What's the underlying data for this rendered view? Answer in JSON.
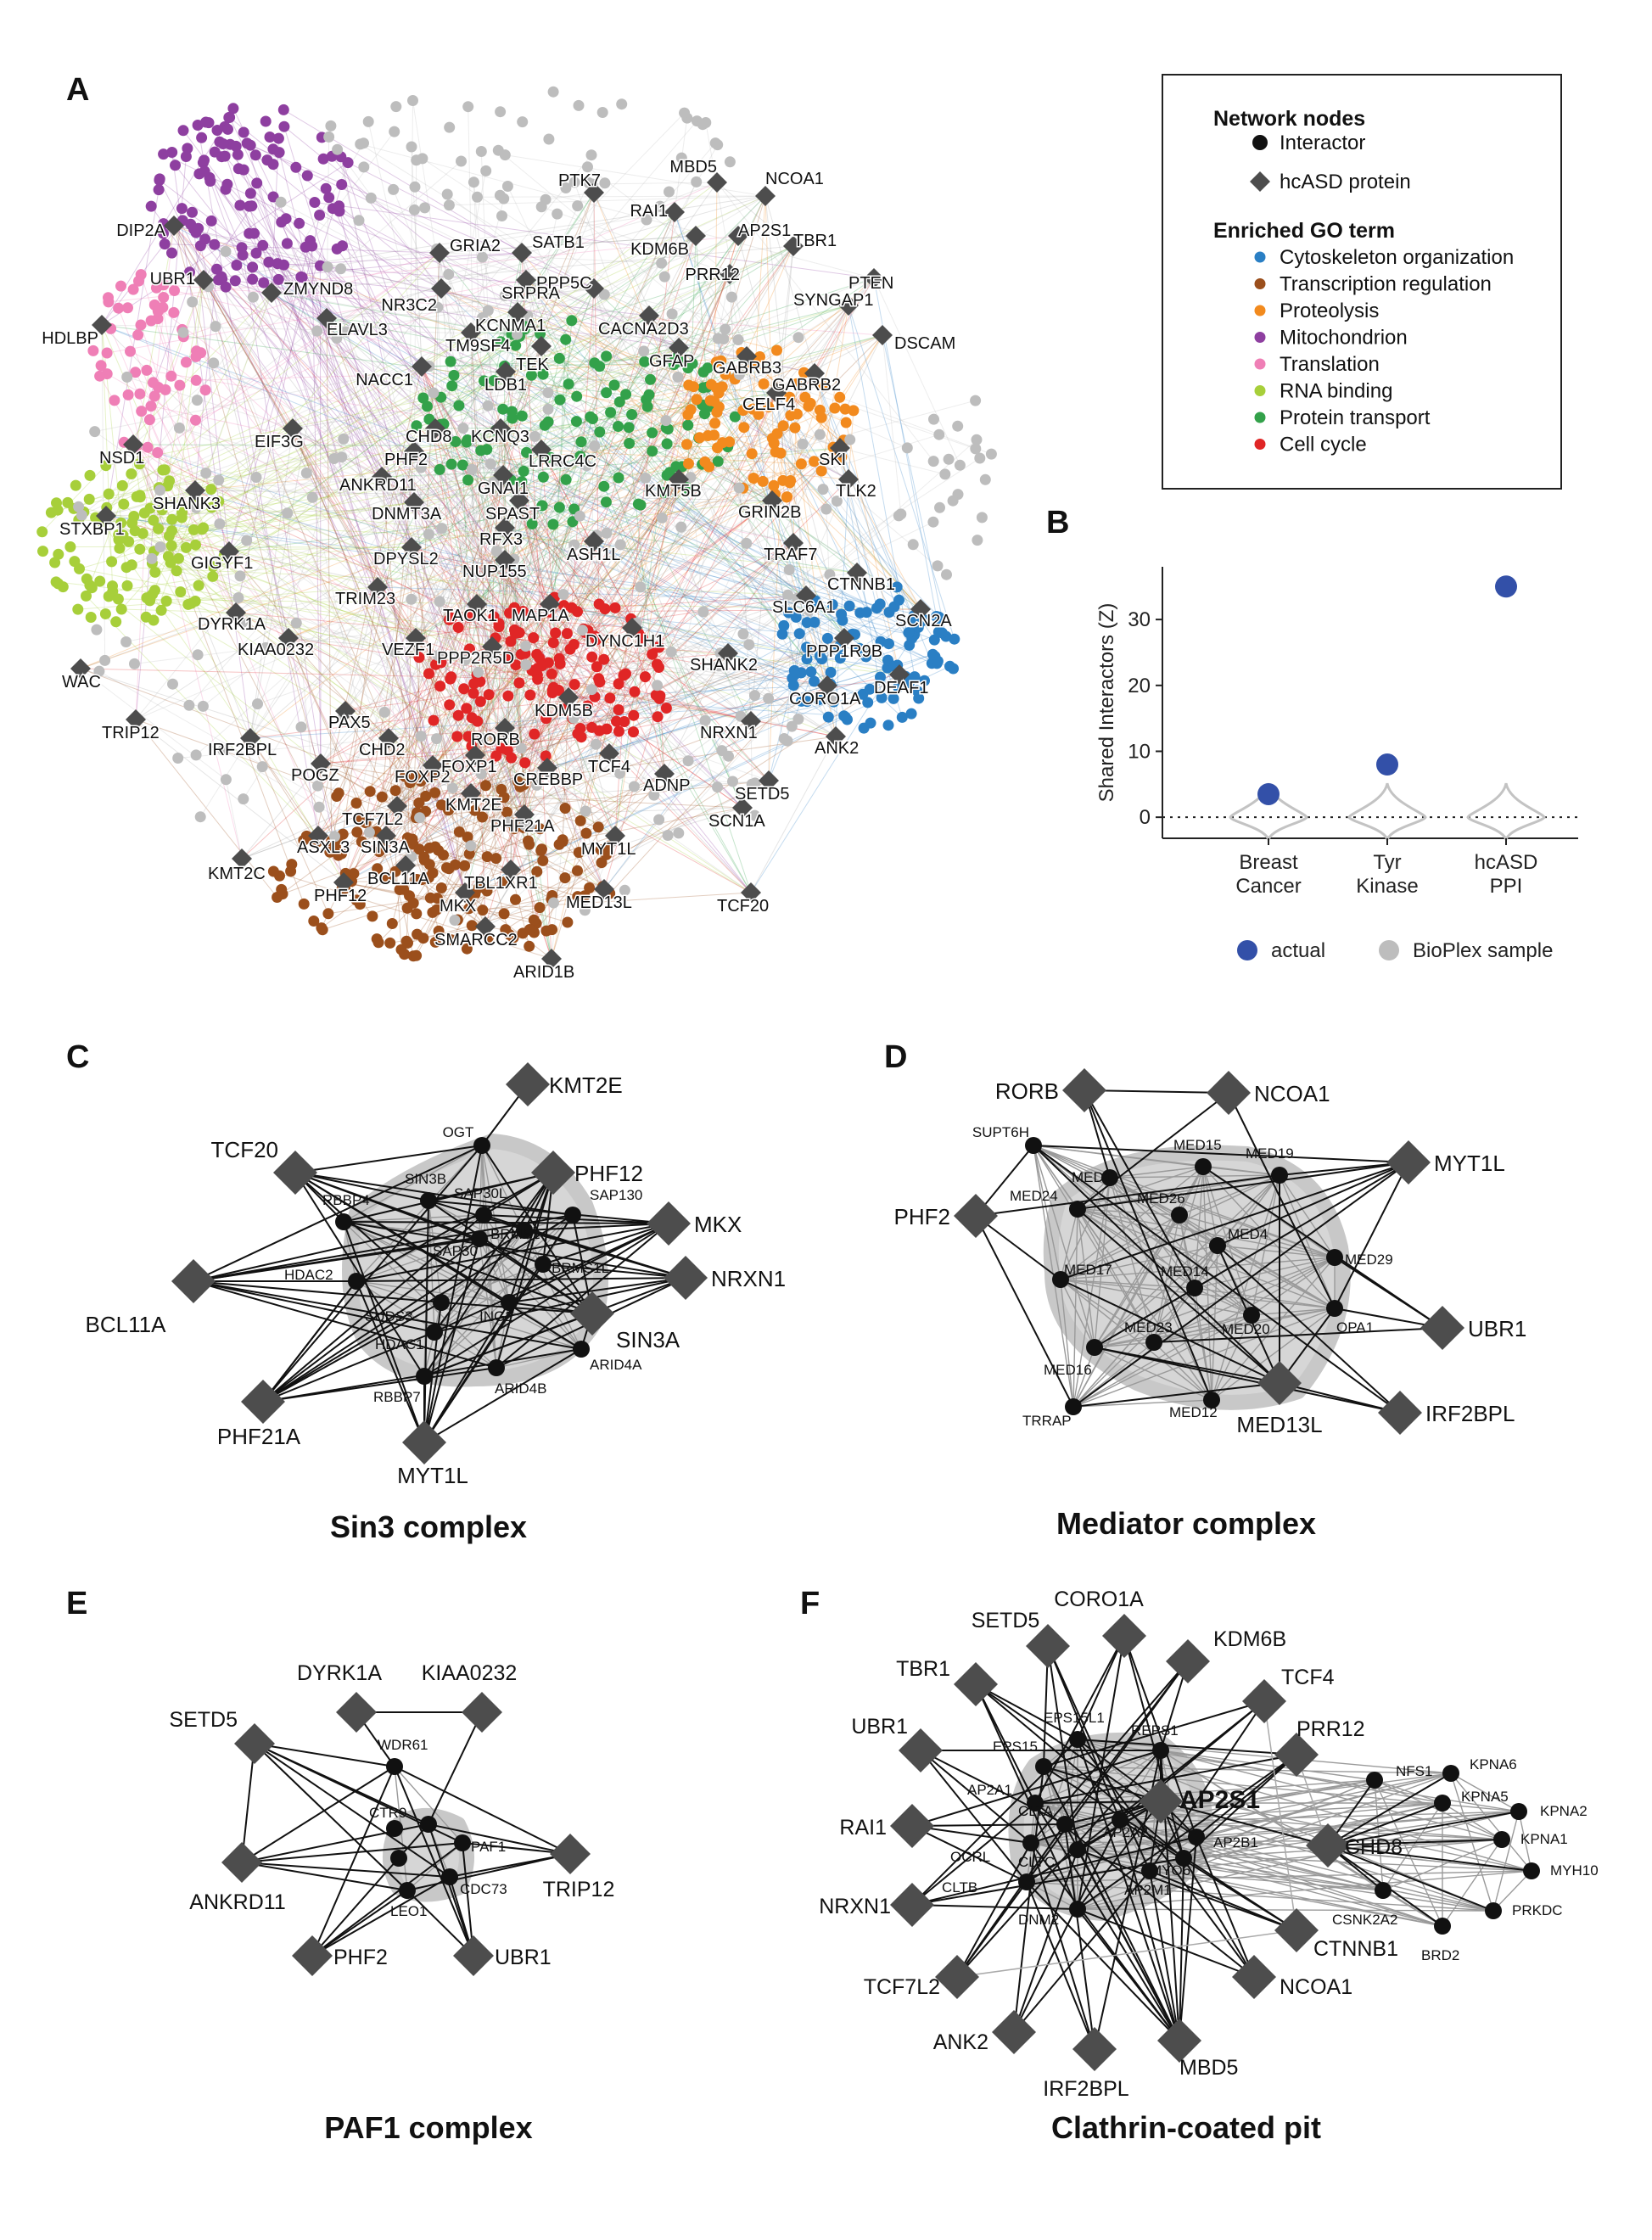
{
  "panels": {
    "A": {
      "label": "A",
      "legend": {
        "nodes_title": "Network nodes",
        "nodes": [
          {
            "label": "Interactor",
            "shape": "circle",
            "color": "#111111"
          },
          {
            "label": "hcASD protein",
            "shape": "diamond",
            "color": "#4d4d4d"
          }
        ],
        "go_title": "Enriched GO term",
        "go": [
          {
            "label": "Cytoskeleton organization",
            "color": "#2a7fc4"
          },
          {
            "label": "Transcription regulation",
            "color": "#9b4f1c"
          },
          {
            "label": "Proteolysis",
            "color": "#f28a1e"
          },
          {
            "label": "Mitochondrion",
            "color": "#8e3fa0"
          },
          {
            "label": "Translation",
            "color": "#ef7fb6"
          },
          {
            "label": "RNA binding",
            "color": "#a7cf3a"
          },
          {
            "label": "Protein transport",
            "color": "#33a14a"
          },
          {
            "label": "Cell cycle",
            "color": "#e02626"
          }
        ]
      },
      "proteins": [
        "PTK7",
        "MBD5",
        "NCOA1",
        "DIP2A",
        "RAI1",
        "KDM6B",
        "AP2S1",
        "TBR1",
        "PTEN",
        "GRIA2",
        "SATB1",
        "PRR12",
        "UBR1",
        "ZMYND8",
        "NR3C2",
        "PPP5C",
        "SRPRA",
        "SYNGAP1",
        "DSCAM",
        "HDLBP",
        "ELAVL3",
        "KCNMA1",
        "CACNA2D3",
        "TM9SF4",
        "TEK",
        "GFAP",
        "GABRB3",
        "GABRB2",
        "NACC1",
        "LDB1",
        "CELF4",
        "EIF3G",
        "NSD1",
        "CHD8",
        "KCNQ3",
        "PHF2",
        "LRRC4C",
        "SKI",
        "ANKRD11",
        "GNAI1",
        "TLK2",
        "SHANK3",
        "DNMT3A",
        "KMT5B",
        "SPAST",
        "STXBP1",
        "RFX3",
        "GRIN2B",
        "ASH1L",
        "GIGYF1",
        "DPYSL2",
        "NUP155",
        "TRAF7",
        "CTNNB1",
        "TRIM23",
        "TAOK1",
        "MAP1A",
        "DYRK1A",
        "SLC6A1",
        "SCN2A",
        "KIAA0232",
        "VEZF1",
        "DYNC1H1",
        "PPP2R5D",
        "SHANK2",
        "PPP1R9B",
        "WAC",
        "DEAF1",
        "TRIP12",
        "CORO1A",
        "PAX5",
        "KDM5B",
        "NRXN1",
        "IRF2BPL",
        "RORB",
        "ANK2",
        "CHD2",
        "TCF4",
        "POGZ",
        "FOXP2",
        "FOXP1",
        "CREBBP",
        "ADNP",
        "SETD5",
        "KMT2E",
        "TCF7L2",
        "PHF21A",
        "SCN1A",
        "ASXL3",
        "SIN3A",
        "MYT1L",
        "KMT2C",
        "BCL11A",
        "TBL1XR1",
        "PHF12",
        "MKX",
        "MED13L",
        "TCF20",
        "SMARCC2",
        "ARID1B"
      ]
    },
    "B": {
      "label": "B",
      "chart_data": {
        "type": "scatter",
        "ylabel": "Shared Interactors (Z)",
        "categories": [
          "Breast Cancer",
          "Tyr Kinase",
          "hcASD PPI"
        ],
        "category_lines": [
          [
            "Breast",
            "Cancer"
          ],
          [
            "Tyr",
            "Kinase"
          ],
          [
            "hcASD",
            "PPI"
          ]
        ],
        "actual": [
          3.5,
          8,
          35
        ],
        "yticks": [
          0,
          10,
          20,
          30
        ],
        "ylim": [
          -3.2,
          38
        ],
        "legend": [
          {
            "label": "actual",
            "color": "#3350a8"
          },
          {
            "label": "BioPlex sample",
            "color": "#bdbdbd"
          }
        ]
      }
    },
    "C": {
      "label": "C",
      "title": "Sin3 complex",
      "hcasd": [
        "KMT2E",
        "PHF12",
        "TCF20",
        "MKX",
        "NRXN1",
        "BCL11A",
        "SIN3A",
        "PHF21A",
        "MYT1L"
      ],
      "interactors": [
        "OGT",
        "SIN3B",
        "SAP30L",
        "SAP130",
        "RBBP4",
        "BRMS1",
        "SAP30",
        "BRMS1L",
        "HDAC2",
        "SUDS3",
        "ING2",
        "HDAC1",
        "ARID4A",
        "RBBP7",
        "ARID4B"
      ]
    },
    "D": {
      "label": "D",
      "title": "Mediator complex",
      "hcasd": [
        "RORB",
        "NCOA1",
        "PHF2",
        "MYT1L",
        "UBR1",
        "IRF2BPL",
        "MED13L"
      ],
      "interactors": [
        "SUPT6H",
        "MED15",
        "MED19",
        "MED1",
        "MED24",
        "MED26",
        "MED4",
        "MED29",
        "MED17",
        "MED14",
        "OPA1",
        "MED20",
        "MED16",
        "MED23",
        "TRRAP",
        "MED12"
      ]
    },
    "E": {
      "label": "E",
      "title": "PAF1 complex",
      "hcasd": [
        "DYRK1A",
        "KIAA0232",
        "SETD5",
        "ANKRD11",
        "TRIP12",
        "PHF2",
        "UBR1"
      ],
      "interactors": [
        "WDR61",
        "CTR9",
        "PAF1",
        "CDC73",
        "LEO1"
      ]
    },
    "F": {
      "label": "F",
      "title": "Clathrin-coated pit",
      "hcasd": [
        "CORO1A",
        "SETD5",
        "KDM6B",
        "TBR1",
        "TCF4",
        "UBR1",
        "PRR12",
        "AP2S1",
        "RAI1",
        "CHD8",
        "NRXN1",
        "CTNNB1",
        "TCF7L2",
        "NCOA1",
        "ANK2",
        "IRF2BPL",
        "MBD5"
      ],
      "interactors": [
        "EPS15L1",
        "REPS1",
        "EPS15",
        "AP2A1",
        "CLTA",
        "AP2A2",
        "AP2B1",
        "OCRL",
        "CLTC",
        "MYO6",
        "CLTB",
        "AP2M1",
        "DNM2",
        "NFS1",
        "KPNA6",
        "KPNA5",
        "KPNA2",
        "KPNA1",
        "MYH10",
        "CSNK2A2",
        "PRKDC",
        "BRD2"
      ]
    }
  }
}
